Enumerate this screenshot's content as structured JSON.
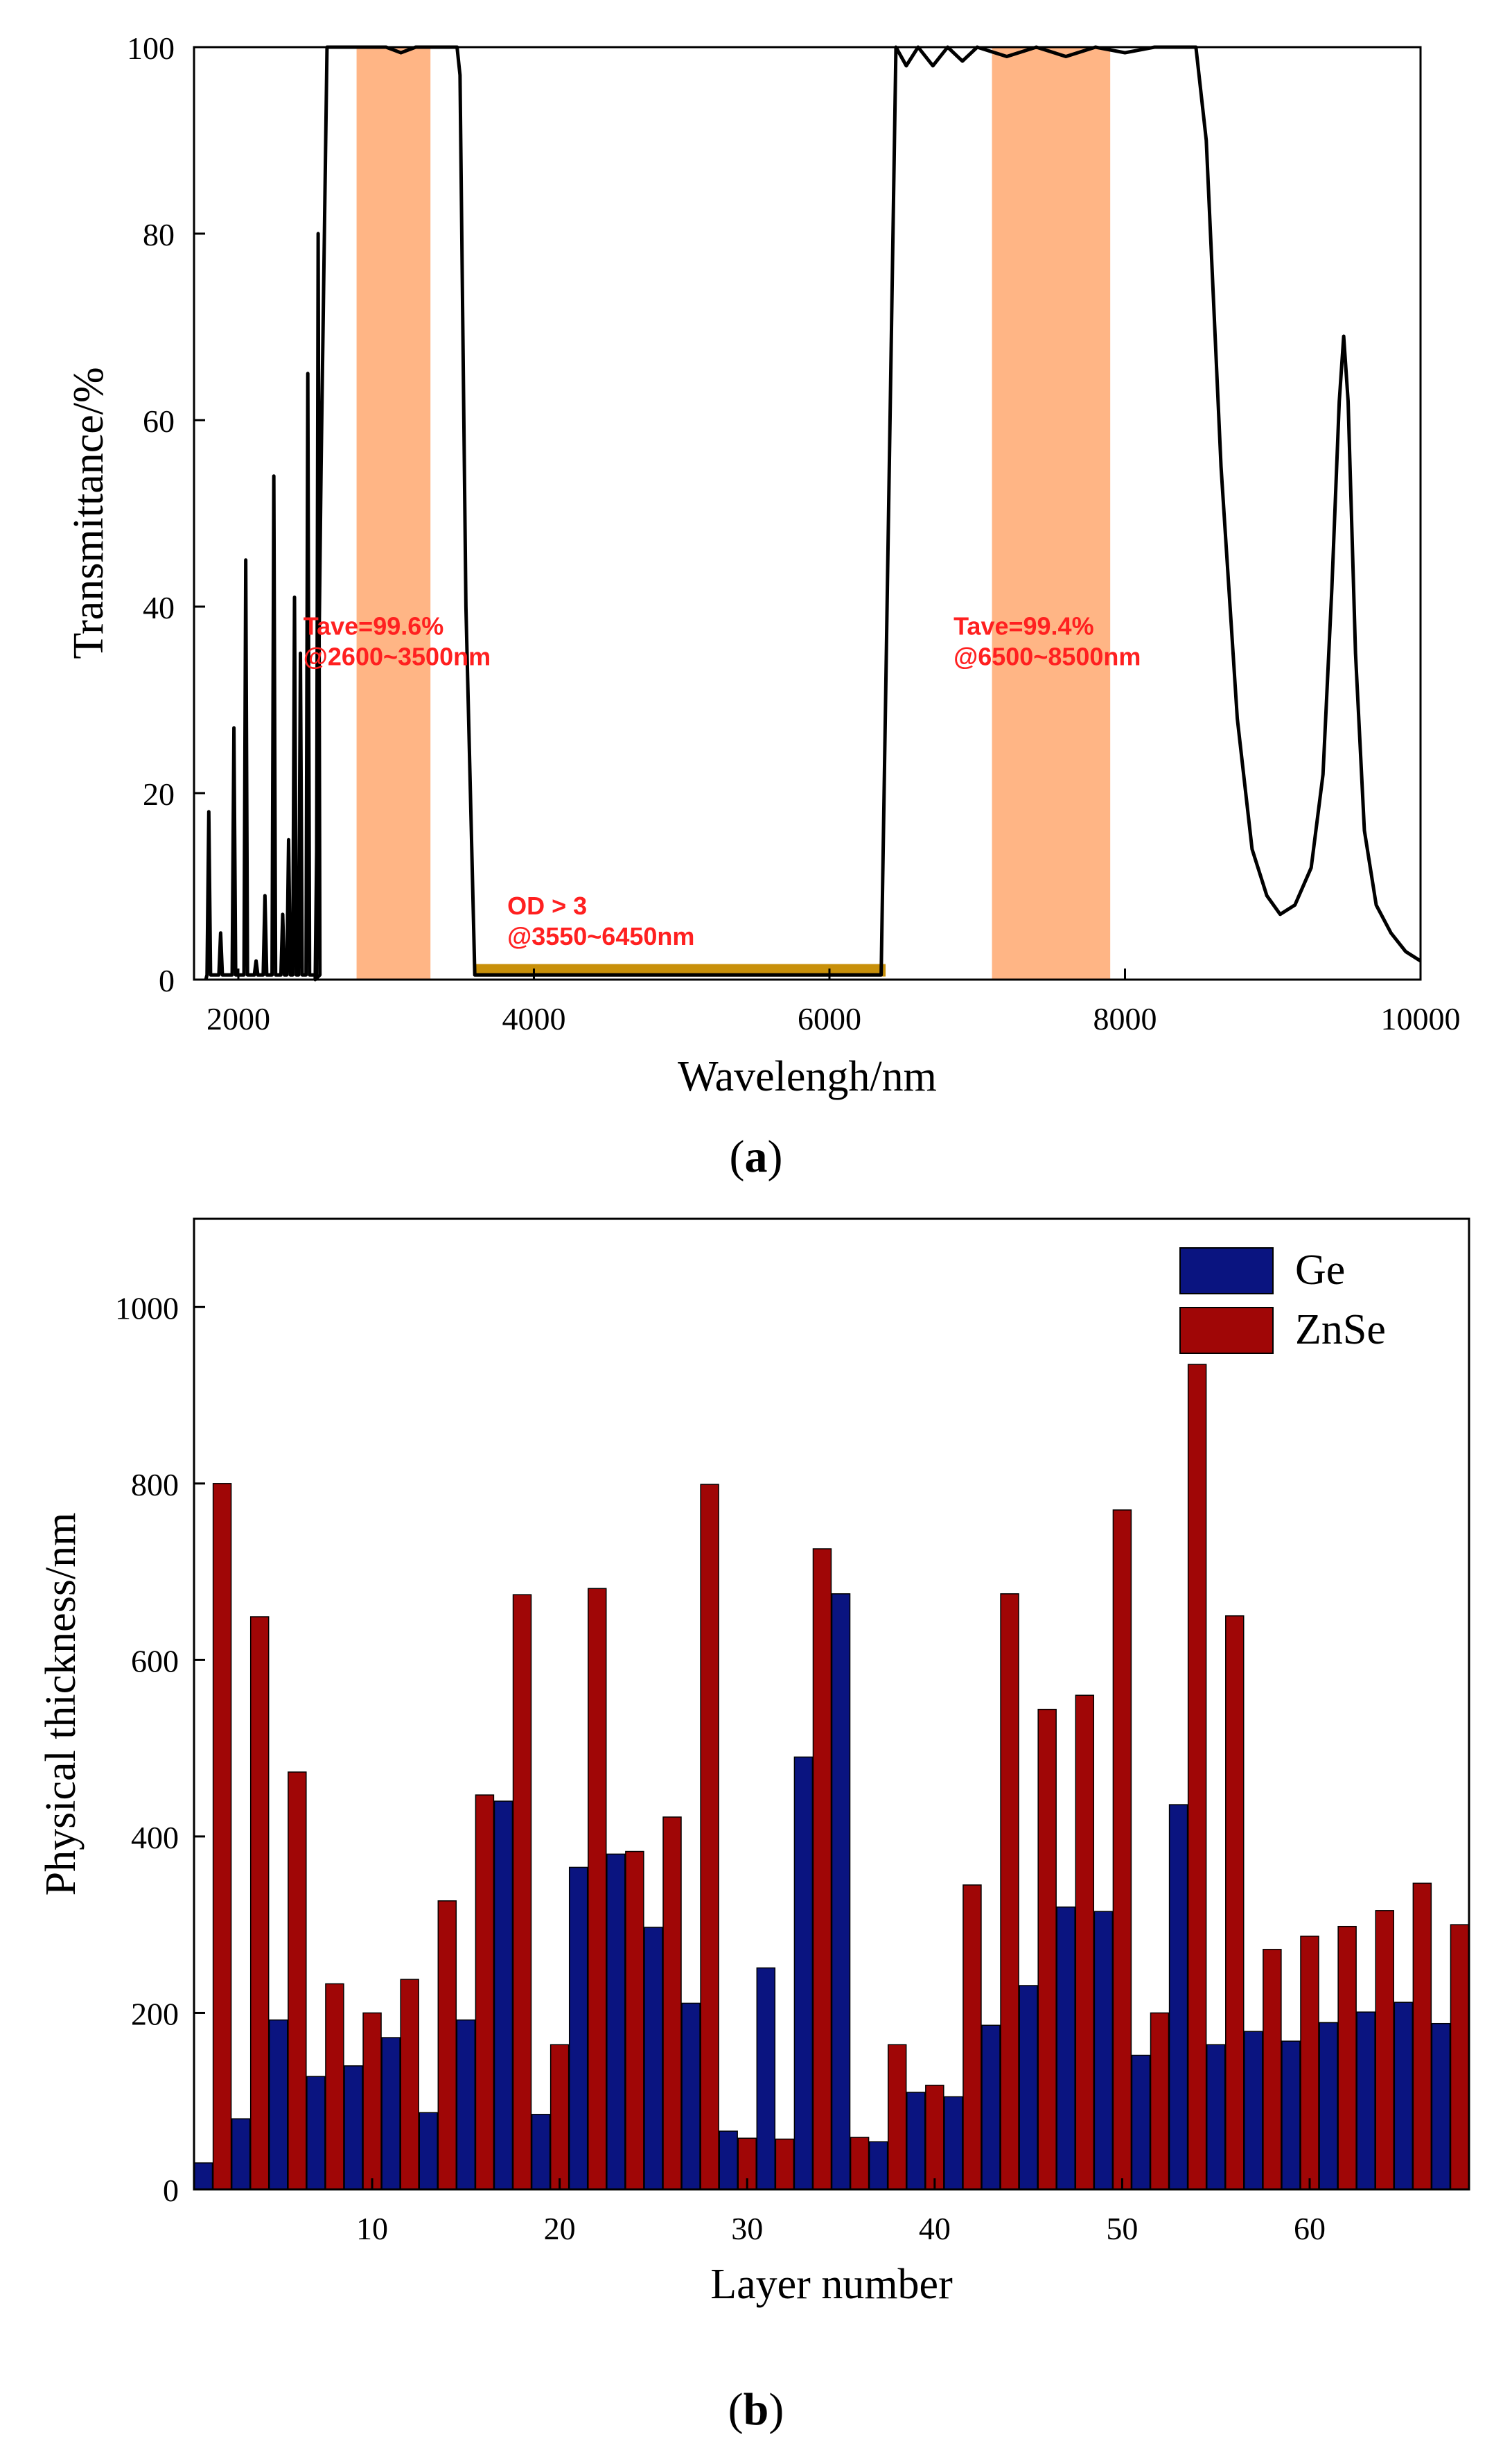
{
  "panel_a": {
    "caption": "(a)",
    "caption_parts": {
      "open": "(",
      "letter": "a",
      "close": ")"
    },
    "chart_data": {
      "type": "line",
      "xlabel": "Wavelengh/nm",
      "ylabel": "Transmittance/%",
      "xlim": [
        1700,
        10000
      ],
      "ylim": [
        0,
        100
      ],
      "xticks": [
        2000,
        4000,
        6000,
        8000,
        10000
      ],
      "yticks": [
        0,
        20,
        40,
        60,
        80,
        100
      ],
      "grid": false,
      "line_color": "#000000",
      "band_color": "#ffb585",
      "stop_color": "#c8900a",
      "annotation_color": "#ff2020",
      "series": [
        {
          "name": "Transmittance",
          "peaks": [
            [
              1800,
              18
            ],
            [
              1880,
              5
            ],
            [
              1970,
              27
            ],
            [
              2050,
              45
            ],
            [
              2120,
              2
            ],
            [
              2180,
              9
            ],
            [
              2240,
              54
            ],
            [
              2300,
              7
            ],
            [
              2340,
              15
            ],
            [
              2380,
              41
            ],
            [
              2420,
              35
            ],
            [
              2470,
              65
            ],
            [
              2540,
              80
            ]
          ],
          "curve": [
            [
              2520,
              0
            ],
            [
              2560,
              55
            ],
            [
              2600,
              100
            ],
            [
              3000,
              100
            ],
            [
              3100,
              99.4
            ],
            [
              3200,
              100
            ],
            [
              3480,
              100
            ],
            [
              3500,
              97
            ],
            [
              3540,
              40
            ],
            [
              3600,
              0.5
            ],
            [
              6350,
              0.5
            ],
            [
              6380,
              30
            ],
            [
              6450,
              100
            ],
            [
              6520,
              98
            ],
            [
              6600,
              100
            ],
            [
              6700,
              98
            ],
            [
              6800,
              100
            ],
            [
              6900,
              98.5
            ],
            [
              7000,
              100
            ],
            [
              7200,
              99
            ],
            [
              7400,
              100
            ],
            [
              7600,
              99
            ],
            [
              7800,
              100
            ],
            [
              8000,
              99.4
            ],
            [
              8200,
              100
            ],
            [
              8480,
              100
            ],
            [
              8550,
              90
            ],
            [
              8650,
              55
            ],
            [
              8760,
              28
            ],
            [
              8860,
              14
            ],
            [
              8960,
              9
            ],
            [
              9050,
              7
            ],
            [
              9150,
              8
            ],
            [
              9260,
              12
            ],
            [
              9340,
              22
            ],
            [
              9400,
              42
            ],
            [
              9450,
              62
            ],
            [
              9480,
              69
            ],
            [
              9510,
              62
            ],
            [
              9560,
              35
            ],
            [
              9620,
              16
            ],
            [
              9700,
              8
            ],
            [
              9800,
              5
            ],
            [
              9900,
              3
            ],
            [
              10000,
              2
            ]
          ]
        }
      ],
      "bands": [
        {
          "name": "pass-band-1",
          "x": [
            2800,
            3300
          ]
        },
        {
          "name": "pass-band-2",
          "x": [
            7100,
            7900
          ]
        }
      ],
      "stop_band": {
        "x": [
          3600,
          6380
        ],
        "y": 1
      },
      "annotations": [
        {
          "name": "pass-band-1-note",
          "lines": [
            "Tave=99.6%",
            "@2600~3500nm"
          ],
          "x": 2440,
          "y": 37
        },
        {
          "name": "stop-band-note",
          "lines": [
            "OD > 3",
            "@3550~6450nm"
          ],
          "x": 3820,
          "y": 7
        },
        {
          "name": "pass-band-2-note",
          "lines": [
            "Tave=99.4%",
            "@6500~8500nm"
          ],
          "x": 6840,
          "y": 37
        }
      ]
    }
  },
  "panel_b": {
    "caption": "(b)",
    "caption_parts": {
      "open": "(",
      "letter": "b",
      "close": ")"
    },
    "chart_data": {
      "type": "bar",
      "xlabel": "Layer number",
      "ylabel": "Physical thickness/nm",
      "xlim": [
        0.5,
        68.5
      ],
      "ylim": [
        0,
        1100
      ],
      "xticks": [
        10,
        20,
        30,
        40,
        50,
        60
      ],
      "yticks": [
        0,
        200,
        400,
        600,
        800,
        1000
      ],
      "grid": false,
      "legend_position": "top-right",
      "series": [
        {
          "name": "Ge",
          "color": "#0a1480",
          "layers": [
            1,
            3,
            5,
            7,
            9,
            11,
            13,
            15,
            17,
            19,
            21,
            23,
            25,
            27,
            29,
            31,
            33,
            35,
            37,
            39,
            41,
            43,
            45,
            47,
            49,
            51,
            53,
            55,
            57,
            59,
            61,
            63,
            65,
            67
          ],
          "values": [
            30,
            80,
            192,
            128,
            140,
            172,
            87,
            192,
            440,
            85,
            365,
            380,
            297,
            211,
            66,
            251,
            490,
            675,
            54,
            110,
            105,
            186,
            231,
            320,
            315,
            152,
            436,
            164,
            179,
            168,
            189,
            201,
            212,
            188
          ]
        },
        {
          "name": "ZnSe",
          "color": "#a00606",
          "layers": [
            2,
            4,
            6,
            8,
            10,
            12,
            14,
            16,
            18,
            20,
            22,
            24,
            26,
            28,
            30,
            32,
            34,
            36,
            38,
            40,
            42,
            44,
            46,
            48,
            50,
            52,
            54,
            56,
            58,
            60,
            62,
            64,
            66,
            68
          ],
          "values": [
            800,
            649,
            473,
            233,
            200,
            238,
            327,
            447,
            674,
            164,
            681,
            383,
            422,
            799,
            58,
            57,
            726,
            59,
            164,
            118,
            345,
            675,
            544,
            560,
            770,
            200,
            935,
            650,
            272,
            287,
            298,
            316,
            347,
            300
          ]
        }
      ]
    }
  }
}
